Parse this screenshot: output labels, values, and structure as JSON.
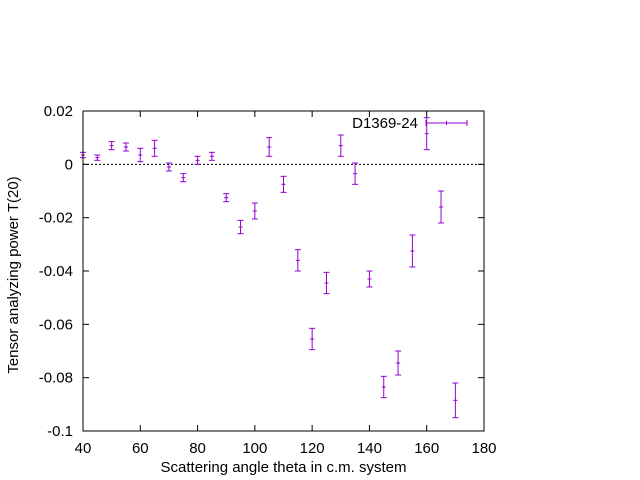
{
  "chart_data": {
    "type": "scatter",
    "xlabel": "Scattering angle theta in c.m. system",
    "ylabel": "Tensor analyzing power T(20)",
    "xlim": [
      40,
      180
    ],
    "ylim": [
      -0.1,
      0.02
    ],
    "x_ticks": [
      "40",
      "60",
      "80",
      "100",
      "120",
      "140",
      "160",
      "180"
    ],
    "y_ticks": [
      "-0.1",
      "-0.08",
      "-0.06",
      "-0.04",
      "-0.02",
      "0",
      "0.02"
    ],
    "zero_line": true,
    "grid": false,
    "legend_position": "top-right",
    "series": [
      {
        "name": "D1369-24",
        "color": "#9400d3",
        "x": [
          40,
          45,
          50,
          55,
          60,
          65,
          70,
          75,
          80,
          85,
          90,
          95,
          100,
          105,
          110,
          115,
          120,
          125,
          130,
          135,
          140,
          145,
          150,
          155,
          160,
          165,
          170
        ],
        "y": [
          0.0035,
          0.0025,
          0.007,
          0.0065,
          0.0035,
          0.006,
          -0.001,
          -0.005,
          0.0015,
          0.003,
          -0.0125,
          -0.0235,
          -0.0175,
          0.0065,
          -0.0075,
          -0.036,
          -0.0655,
          -0.0445,
          0.007,
          -0.0035,
          -0.043,
          -0.0835,
          -0.0745,
          -0.0325,
          0.0115,
          -0.016,
          -0.0885
        ],
        "err": [
          0.001,
          0.001,
          0.0015,
          0.0015,
          0.0025,
          0.003,
          0.0015,
          0.0015,
          0.0015,
          0.0015,
          0.0015,
          0.0025,
          0.003,
          0.0035,
          0.003,
          0.004,
          0.004,
          0.004,
          0.004,
          0.004,
          0.003,
          0.004,
          0.0045,
          0.006,
          0.006,
          0.006,
          0.0065
        ]
      }
    ]
  }
}
